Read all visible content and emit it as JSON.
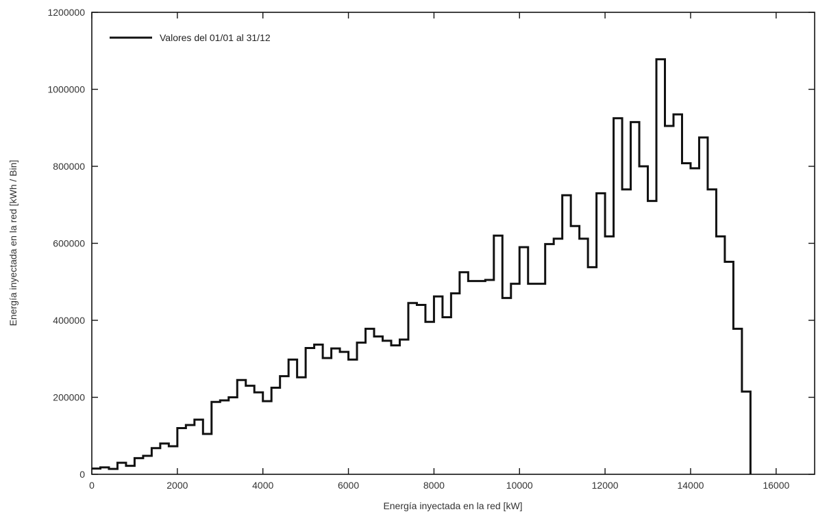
{
  "chart_data": {
    "type": "line",
    "step": true,
    "title": "",
    "xlabel": "Energía inyectada en la red [kW]",
    "ylabel": "Energía inyectada en la red [kWh / Bin]",
    "xlim": [
      0,
      16900
    ],
    "ylim": [
      0,
      1200000
    ],
    "x_ticks": [
      0,
      2000,
      4000,
      6000,
      8000,
      10000,
      12000,
      14000,
      16000
    ],
    "y_ticks": [
      0,
      200000,
      400000,
      600000,
      800000,
      1000000,
      1200000
    ],
    "grid": false,
    "legend_position": "top-left",
    "line_color": "#111111",
    "bin_width": 200,
    "series": [
      {
        "name": "Valores del 01/01 al 31/12",
        "x": [
          0,
          200,
          400,
          600,
          800,
          1000,
          1200,
          1400,
          1600,
          1800,
          2000,
          2200,
          2400,
          2600,
          2800,
          3000,
          3200,
          3400,
          3600,
          3800,
          4000,
          4200,
          4400,
          4600,
          4800,
          5000,
          5200,
          5400,
          5600,
          5800,
          6000,
          6200,
          6400,
          6600,
          6800,
          7000,
          7200,
          7400,
          7600,
          7800,
          8000,
          8200,
          8400,
          8600,
          8800,
          9000,
          9200,
          9400,
          9600,
          9800,
          10000,
          10200,
          10400,
          10600,
          10800,
          11000,
          11200,
          11400,
          11600,
          11800,
          12000,
          12200,
          12400,
          12600,
          12800,
          13000,
          13200,
          13400,
          13600,
          13800,
          14000,
          14200,
          14400,
          14600,
          14800,
          15000,
          15200,
          15400
        ],
        "values": [
          15000,
          18000,
          14000,
          30000,
          22000,
          42000,
          48000,
          68000,
          80000,
          73000,
          120000,
          128000,
          142000,
          105000,
          188000,
          192000,
          200000,
          245000,
          230000,
          213000,
          190000,
          225000,
          255000,
          298000,
          252000,
          328000,
          337000,
          302000,
          327000,
          318000,
          298000,
          342000,
          378000,
          358000,
          347000,
          335000,
          350000,
          445000,
          440000,
          396000,
          462000,
          408000,
          470000,
          525000,
          502000,
          502000,
          505000,
          620000,
          458000,
          495000,
          590000,
          495000,
          495000,
          598000,
          612000,
          725000,
          645000,
          612000,
          538000,
          730000,
          618000,
          925000,
          740000,
          915000,
          800000,
          710000,
          1078000,
          905000,
          935000,
          808000,
          795000,
          875000,
          740000,
          618000,
          552000,
          378000,
          215000,
          0
        ]
      }
    ]
  }
}
